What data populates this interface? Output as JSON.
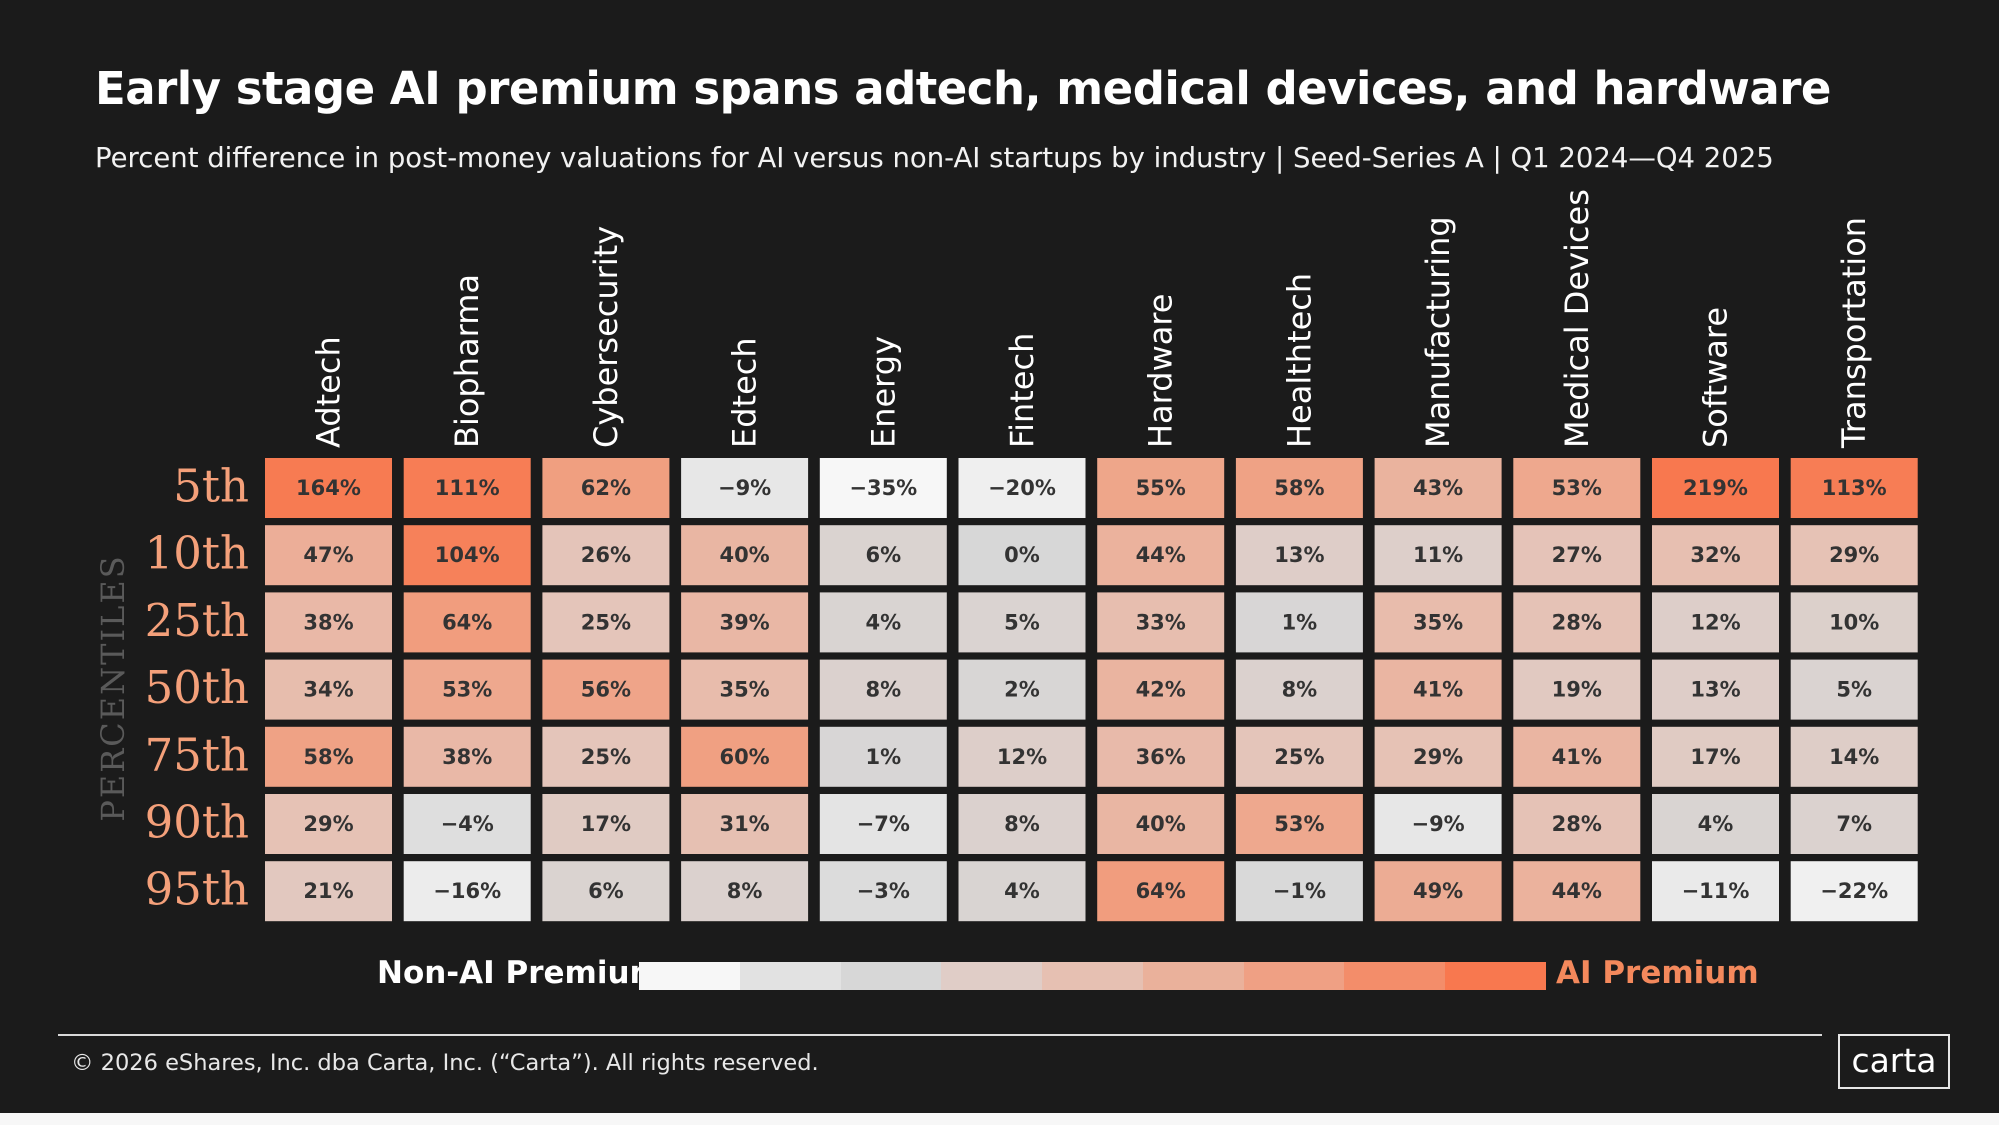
{
  "title": "Early stage AI premium spans adtech, medical devices, and hardware",
  "subtitle": "Percent difference in post-money valuations for AI versus non-AI  startups by industry  |  Seed-Series A  |  Q1 2024—Q4 2025",
  "chart_data": {
    "type": "heatmap",
    "title": "Early stage AI premium spans adtech, medical devices, and hardware",
    "ylabel": "PERCENTILES",
    "columns": [
      "Adtech",
      "Biopharma",
      "Cybersecurity",
      "Edtech",
      "Energy",
      "Fintech",
      "Hardware",
      "Healthtech",
      "Manufacturing",
      "Medical Devices",
      "Software",
      "Transportation"
    ],
    "rows": [
      "5th",
      "10th",
      "25th",
      "50th",
      "75th",
      "90th",
      "95th"
    ],
    "values": [
      [
        164,
        111,
        62,
        -9,
        -35,
        -20,
        55,
        58,
        43,
        53,
        219,
        113
      ],
      [
        47,
        104,
        26,
        40,
        6,
        0,
        44,
        13,
        11,
        27,
        32,
        29
      ],
      [
        38,
        64,
        25,
        39,
        4,
        5,
        33,
        1,
        35,
        28,
        12,
        10
      ],
      [
        34,
        53,
        56,
        35,
        8,
        2,
        42,
        8,
        41,
        19,
        13,
        5
      ],
      [
        58,
        38,
        25,
        60,
        1,
        12,
        36,
        25,
        29,
        41,
        17,
        14
      ],
      [
        29,
        -4,
        17,
        31,
        -7,
        8,
        40,
        53,
        -9,
        28,
        4,
        7
      ],
      [
        21,
        -16,
        6,
        8,
        -3,
        4,
        64,
        -1,
        49,
        44,
        -11,
        -22
      ]
    ],
    "value_format": "{v}%"
  },
  "legend": {
    "left_label": "Non-AI Premium",
    "right_label": "AI Premium",
    "scale_colors": [
      "#f7f7f7",
      "#e2e2e2",
      "#d7d7d7",
      "#e0cdc7",
      "#e6c0b2",
      "#eab19b",
      "#efa084",
      "#f38d6a",
      "#f8784f"
    ]
  },
  "colors": {
    "background": "#1b1b1b",
    "ai_premium": "#f8784f",
    "row_label": "#f4a07a",
    "neutral": "#d7d7d7"
  },
  "footer": {
    "copyright": "© 2026 eShares, Inc. dba Carta, Inc. (“Carta”). All rights reserved.",
    "logo_text": "carta"
  }
}
